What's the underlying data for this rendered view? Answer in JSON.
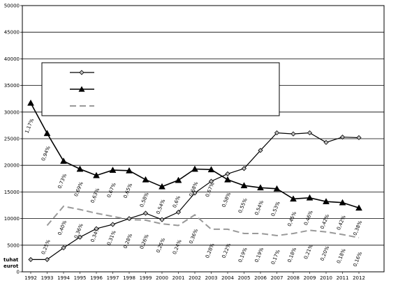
{
  "chart_data": {
    "type": "line",
    "x": [
      "1992",
      "1993",
      "1994",
      "1995",
      "1996",
      "1997",
      "1998",
      "1999",
      "2000",
      "2001",
      "2002",
      "2003",
      "2004",
      "2005",
      "2006",
      "2007",
      "2008",
      "2009",
      "2010",
      "2011",
      "2012"
    ],
    "ylabel": "tuhat\neurot",
    "ylim": [
      0,
      50000
    ],
    "ytick_labels": [
      "0",
      "5000",
      "10000",
      "15000",
      "20000",
      "25000",
      "30000",
      "35000",
      "40000",
      "45000",
      "50000"
    ],
    "grid": "horizontal",
    "legend": {
      "placement": "upper-left",
      "entries": [
        {
          "marker": "diamond",
          "text": ""
        },
        {
          "marker": "triangle",
          "text": ""
        },
        {
          "marker": "dash",
          "text": ""
        }
      ]
    },
    "series": [
      {
        "marker": "diamond",
        "color": "#000000",
        "values": [
          2300,
          2300,
          4500,
          6500,
          8100,
          8900,
          10000,
          11000,
          9800,
          11200,
          14800,
          17000,
          18400,
          19400,
          22800,
          26100,
          25900,
          26100,
          24300,
          25300,
          25200
        ]
      },
      {
        "marker": "triangle",
        "color": "#000000",
        "values": [
          31700,
          26000,
          20800,
          19300,
          18100,
          19100,
          19000,
          17300,
          16000,
          17200,
          19300,
          19200,
          17300,
          16200,
          15800,
          15600,
          13700,
          13900,
          13200,
          13000,
          12000
        ]
      },
      {
        "marker": "dash",
        "color": "#999999",
        "values": [
          null,
          8700,
          12300,
          11700,
          11000,
          10400,
          9800,
          9700,
          9000,
          8700,
          10700,
          8000,
          8000,
          7200,
          7200,
          6800,
          7200,
          7800,
          7500,
          7000,
          6400
        ]
      }
    ],
    "annotations": [
      "1,17%",
      "0,94%",
      "0,73%",
      "0,69%",
      "0,63%",
      "0,67%",
      "0,65%",
      "0,58%",
      "0,54%",
      "0,6%",
      "0,68%",
      "0,67%",
      "0,58%",
      "0,55%",
      "0,54%",
      "0,53%",
      "0,45%",
      "0,46%",
      "0,42%",
      "0,42%",
      "0,38%",
      "0,25%",
      "0,40%",
      "0,36%",
      "0,34%",
      "0,31%",
      "0,28%",
      "0,26%",
      "0,25%",
      "0,24%",
      "0,36%",
      "0,28%",
      "0,22%",
      "0,19%",
      "0,19%",
      "0,17%",
      "0,18%",
      "0,21%",
      "0,20%",
      "0,18%",
      "0,16%"
    ]
  }
}
